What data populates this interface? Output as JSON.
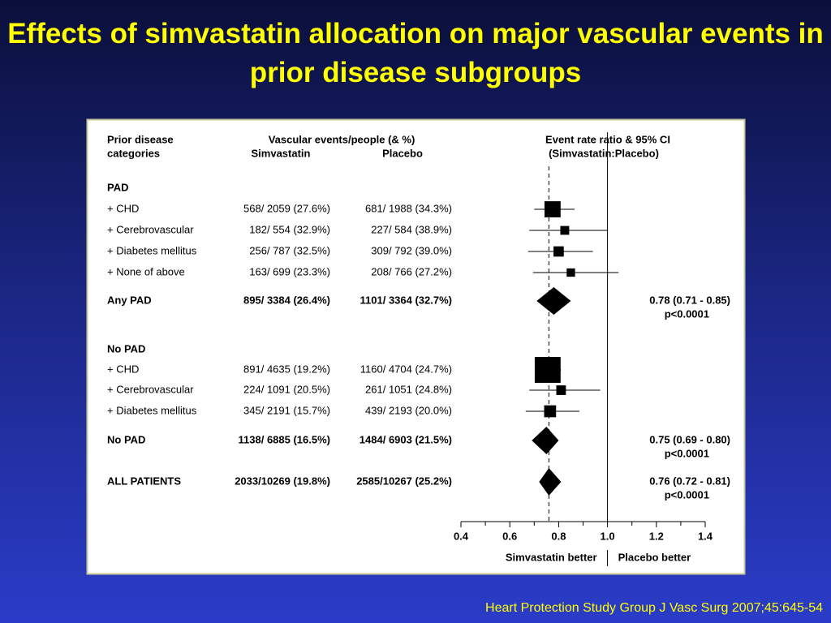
{
  "title": "Effects of simvastatin allocation on major vascular events in prior disease subgroups",
  "citation": "Heart Protection Study Group J Vasc Surg 2007;45:645-54",
  "chart_data": {
    "type": "forest",
    "headers": {
      "category_1": "Prior disease",
      "category_2": "categories",
      "events": "Vascular events/people (& %)",
      "simvastatin": "Simvastatin",
      "placebo": "Placebo",
      "ratio_1": "Event rate ratio & 95% CI",
      "ratio_2": "(Simvastatin:Placebo)"
    },
    "rows": [
      {
        "kind": "heading",
        "label": "PAD"
      },
      {
        "kind": "subgroup",
        "label": "+ CHD",
        "simvastatin": "568/ 2059 (27.6%)",
        "placebo": "681/ 1988 (34.3%)",
        "estimate": 0.775,
        "ci": [
          0.7,
          0.865
        ]
      },
      {
        "kind": "subgroup",
        "label": "+ Cerebrovascular",
        "simvastatin": "182/ 554 (32.9%)",
        "placebo": "227/ 584 (38.9%)",
        "estimate": 0.825,
        "ci": [
          0.68,
          1.0
        ]
      },
      {
        "kind": "subgroup",
        "label": "+ Diabetes mellitus",
        "simvastatin": "256/ 787 (32.5%)",
        "placebo": "309/ 792 (39.0%)",
        "estimate": 0.8,
        "ci": [
          0.675,
          0.94
        ]
      },
      {
        "kind": "subgroup",
        "label": "+ None of above",
        "simvastatin": "163/ 699 (23.3%)",
        "placebo": "208/ 766 (27.2%)",
        "estimate": 0.85,
        "ci": [
          0.695,
          1.045
        ]
      },
      {
        "kind": "summary",
        "label": "Any PAD",
        "simvastatin": "895/ 3384 (26.4%)",
        "placebo": "1101/ 3364 (32.7%)",
        "estimate": 0.78,
        "ci": [
          0.71,
          0.85
        ],
        "value_label": "0.78 (0.71 - 0.85)",
        "p_label": "p<0.0001"
      },
      {
        "kind": "heading",
        "label": "No PAD"
      },
      {
        "kind": "subgroup",
        "label": "+ CHD",
        "simvastatin": "891/ 4635 (19.2%)",
        "placebo": "1160/ 4704 (24.7%)",
        "estimate": 0.755,
        "ci": [
          0.71,
          0.81
        ]
      },
      {
        "kind": "subgroup",
        "label": "+ Cerebrovascular",
        "simvastatin": "224/ 1091 (20.5%)",
        "placebo": "261/ 1051 (24.8%)",
        "estimate": 0.81,
        "ci": [
          0.68,
          0.97
        ]
      },
      {
        "kind": "subgroup",
        "label": "+ Diabetes mellitus",
        "simvastatin": "345/ 2191 (15.7%)",
        "placebo": "439/ 2193 (20.0%)",
        "estimate": 0.765,
        "ci": [
          0.665,
          0.885
        ]
      },
      {
        "kind": "summary",
        "label": "No PAD",
        "simvastatin": "1138/ 6885 (16.5%)",
        "placebo": "1484/ 6903 (21.5%)",
        "estimate": 0.75,
        "ci": [
          0.69,
          0.8
        ],
        "value_label": "0.75 (0.69 - 0.80)",
        "p_label": "p<0.0001"
      },
      {
        "kind": "summary",
        "label": "ALL PATIENTS",
        "simvastatin": "2033/10269 (19.8%)",
        "placebo": "2585/10267 (25.2%)",
        "estimate": 0.76,
        "ci": [
          0.72,
          0.81
        ],
        "value_label": "0.76 (0.72 - 0.81)",
        "p_label": "p<0.0001"
      }
    ],
    "xlim": [
      0.4,
      1.4
    ],
    "xticks": [
      0.4,
      0.6,
      0.8,
      {
        "value": 1,
        "label": "1.0"
      },
      1.2,
      1.4
    ],
    "minor_xticks": [
      0.5,
      0.7,
      0.9,
      1.1,
      1.3
    ],
    "reference_line": 1,
    "favours_left": "Simvastatin better",
    "favours_right": "Placebo better"
  }
}
